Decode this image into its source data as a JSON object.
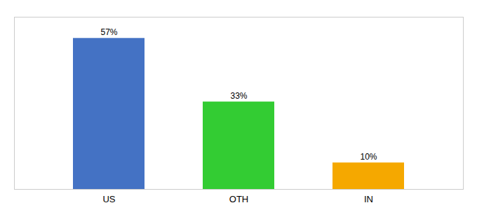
{
  "chart_data": {
    "type": "bar",
    "categories": [
      "US",
      "OTH",
      "IN"
    ],
    "values": [
      57,
      33,
      10
    ],
    "value_labels": [
      "57%",
      "33%",
      "10%"
    ],
    "colors": [
      "#4472c4",
      "#33cc33",
      "#f5a800"
    ],
    "ylim": [
      0,
      65
    ],
    "data_labels": true,
    "tick_labels": "x",
    "grid": false
  }
}
